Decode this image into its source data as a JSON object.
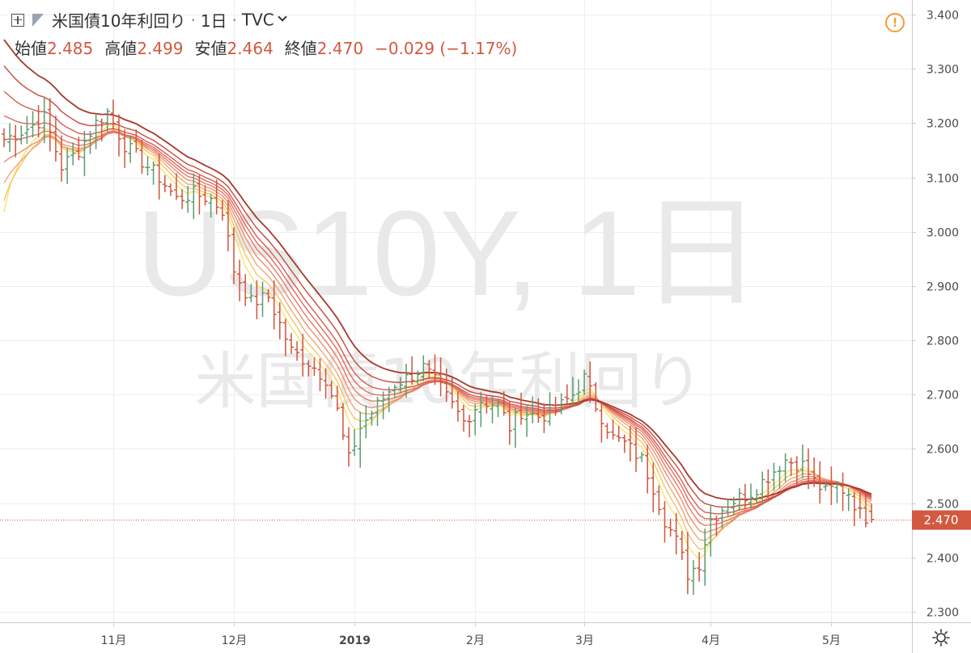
{
  "header": {
    "symbol_name": "米国債10年利回り",
    "interval": "1日",
    "source": "TVC",
    "ohlc": [
      {
        "label": "始値",
        "value": "2.485"
      },
      {
        "label": "高値",
        "value": "2.499"
      },
      {
        "label": "安値",
        "value": "2.464"
      },
      {
        "label": "終値",
        "value": "2.470"
      }
    ],
    "change": "−0.029 (−1.17%)"
  },
  "colors": {
    "up": "#5b9b6e",
    "down": "#d0543c",
    "ribbon": [
      "#f7e36b",
      "#f4c46e",
      "#f0a872",
      "#ec9070",
      "#e77a68",
      "#e06a5d",
      "#d85a50",
      "#c84a3f",
      "#a53a2a"
    ],
    "price_label_bg": "#d2593f",
    "grid": "#eceef2",
    "watermark": "#e9e9e9"
  },
  "icons": {
    "add": "plus-box-icon",
    "flag": "flag-icon",
    "chevron": "chevron-down-icon",
    "warning": "warning-icon",
    "settings": "gear-icon"
  },
  "chart_data": {
    "type": "ohlc-bar",
    "watermark_line1": "US10Y, 1日",
    "watermark_line2": "米国債10年利回り",
    "ylim": [
      2.28,
      3.42
    ],
    "y_ticks": [
      3.4,
      3.3,
      3.2,
      3.1,
      3.0,
      2.9,
      2.8,
      2.7,
      2.6,
      2.5,
      2.4,
      2.3
    ],
    "y_tick_labels": [
      "3.400",
      "3.300",
      "3.200",
      "3.100",
      "3.000",
      "2.900",
      "2.800",
      "2.700",
      "2.600",
      "2.500",
      "2.400",
      "2.300"
    ],
    "x_labels": [
      {
        "label": "11月",
        "bar": 19,
        "bold": false
      },
      {
        "label": "12月",
        "bar": 40,
        "bold": false
      },
      {
        "label": "2019",
        "bar": 61,
        "bold": true
      },
      {
        "label": "2月",
        "bar": 82,
        "bold": false
      },
      {
        "label": "3月",
        "bar": 101,
        "bold": false
      },
      {
        "label": "4月",
        "bar": 123,
        "bold": false
      },
      {
        "label": "5月",
        "bar": 144,
        "bold": false
      }
    ],
    "last_price": 2.47,
    "last_price_label": "2.470",
    "bar_count": 152,
    "anchors": [
      [
        0,
        3.17
      ],
      [
        4,
        3.19
      ],
      [
        7,
        3.21
      ],
      [
        10,
        3.12
      ],
      [
        13,
        3.15
      ],
      [
        16,
        3.2
      ],
      [
        18,
        3.22
      ],
      [
        21,
        3.16
      ],
      [
        24,
        3.13
      ],
      [
        27,
        3.1
      ],
      [
        30,
        3.06
      ],
      [
        33,
        3.07
      ],
      [
        36,
        3.06
      ],
      [
        38,
        3.04
      ],
      [
        40,
        2.93
      ],
      [
        43,
        2.87
      ],
      [
        46,
        2.88
      ],
      [
        50,
        2.78
      ],
      [
        53,
        2.76
      ],
      [
        56,
        2.73
      ],
      [
        58,
        2.67
      ],
      [
        59,
        2.62
      ],
      [
        60,
        2.58
      ],
      [
        62,
        2.64
      ],
      [
        65,
        2.68
      ],
      [
        68,
        2.72
      ],
      [
        70,
        2.73
      ],
      [
        73,
        2.75
      ],
      [
        76,
        2.71
      ],
      [
        78,
        2.68
      ],
      [
        80,
        2.65
      ],
      [
        83,
        2.69
      ],
      [
        86,
        2.68
      ],
      [
        88,
        2.64
      ],
      [
        90,
        2.67
      ],
      [
        93,
        2.66
      ],
      [
        96,
        2.67
      ],
      [
        99,
        2.7
      ],
      [
        101,
        2.73
      ],
      [
        103,
        2.68
      ],
      [
        106,
        2.62
      ],
      [
        108,
        2.61
      ],
      [
        111,
        2.58
      ],
      [
        113,
        2.53
      ],
      [
        115,
        2.47
      ],
      [
        117,
        2.43
      ],
      [
        119,
        2.37
      ],
      [
        121,
        2.39
      ],
      [
        123,
        2.47
      ],
      [
        126,
        2.5
      ],
      [
        130,
        2.52
      ],
      [
        133,
        2.55
      ],
      [
        136,
        2.58
      ],
      [
        139,
        2.57
      ],
      [
        141,
        2.54
      ],
      [
        143,
        2.52
      ],
      [
        145,
        2.53
      ],
      [
        147,
        2.52
      ],
      [
        149,
        2.48
      ],
      [
        151,
        2.47
      ]
    ],
    "ribbon_lengths": [
      5,
      7,
      9,
      11,
      13,
      15,
      17,
      20,
      24
    ]
  }
}
